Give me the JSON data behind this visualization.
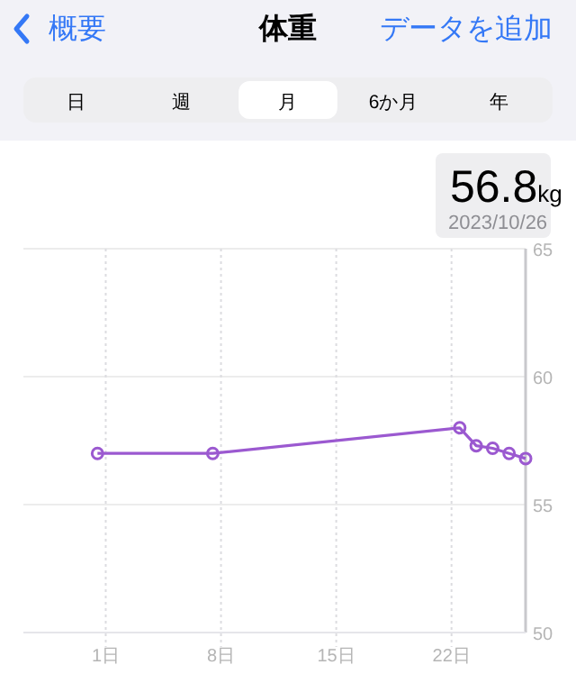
{
  "chart_data": {
    "type": "line",
    "title": "体重",
    "annotations": [
      "概要",
      "データを追加",
      "日",
      "週",
      "月",
      "6か月",
      "年",
      "56.8kg",
      "2023/10/26"
    ],
    "x": [
      "2023-09-30T12:00",
      "2023-10-07T12:00",
      "2023-10-22T12:00",
      "2023-10-23T12:00",
      "2023-10-24T12:00",
      "2023-10-25T12:00",
      "2023-10-26T12:00"
    ],
    "series": [
      {
        "color": "#9b59d0",
        "values": [
          57.0,
          57.0,
          58.0,
          57.3,
          57.2,
          57.0,
          56.8
        ]
      }
    ],
    "xlim": [
      "2023-09-26T00:00",
      "2023-10-26T12:00"
    ],
    "xticks": [
      {
        "value": "2023-10-01",
        "label": "1日"
      },
      {
        "value": "2023-10-08",
        "label": "8日"
      },
      {
        "value": "2023-10-15",
        "label": "15日"
      },
      {
        "value": "2023-10-22",
        "label": "22日"
      }
    ],
    "ylim": [
      50,
      65
    ],
    "yticks": [
      50,
      55,
      60,
      65
    ],
    "grid": true,
    "marker": "circle",
    "line_style": "solid"
  }
}
